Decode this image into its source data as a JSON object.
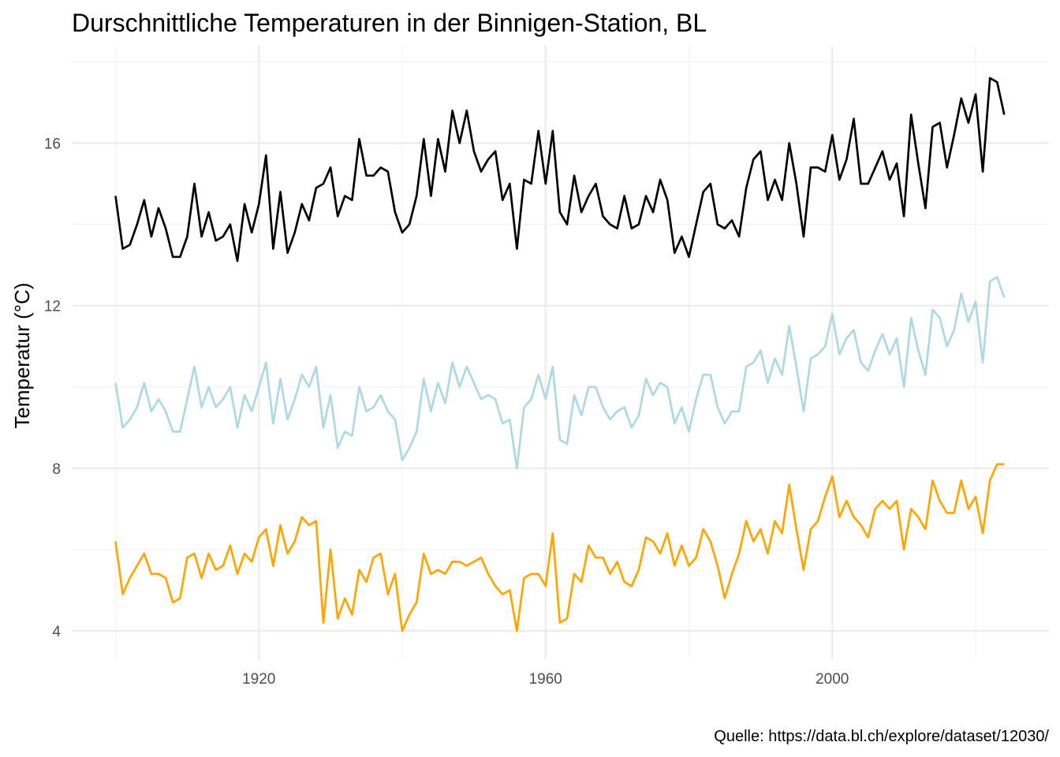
{
  "chart_data": {
    "type": "line",
    "title": "Durschnittliche Temperaturen in der Binnigen-Station, BL",
    "xlabel": "",
    "ylabel": "Temperatur (°C)",
    "caption": "Quelle: https://data.bl.ch/explore/dataset/12030/",
    "xlim": [
      1890,
      2028
    ],
    "ylim": [
      3.4,
      18.2
    ],
    "x_ticks": [
      1920,
      1960,
      2000
    ],
    "x_minor_ticks": [
      1900,
      1940,
      1980,
      2020
    ],
    "y_ticks": [
      4,
      8,
      12,
      16
    ],
    "y_minor_ticks": [
      6,
      10,
      14,
      18
    ],
    "grid": true,
    "legend": "none",
    "x_start": 1900,
    "x": [
      1900,
      1901,
      1902,
      1903,
      1904,
      1905,
      1906,
      1907,
      1908,
      1909,
      1910,
      1911,
      1912,
      1913,
      1914,
      1915,
      1916,
      1917,
      1918,
      1919,
      1920,
      1921,
      1922,
      1923,
      1924,
      1925,
      1926,
      1927,
      1928,
      1929,
      1930,
      1931,
      1932,
      1933,
      1934,
      1935,
      1936,
      1937,
      1938,
      1939,
      1940,
      1941,
      1942,
      1943,
      1944,
      1945,
      1946,
      1947,
      1948,
      1949,
      1950,
      1951,
      1952,
      1953,
      1954,
      1955,
      1956,
      1957,
      1958,
      1959,
      1960,
      1961,
      1962,
      1963,
      1964,
      1965,
      1966,
      1967,
      1968,
      1969,
      1970,
      1971,
      1972,
      1973,
      1974,
      1975,
      1976,
      1977,
      1978,
      1979,
      1980,
      1981,
      1982,
      1983,
      1984,
      1985,
      1986,
      1987,
      1988,
      1989,
      1990,
      1991,
      1992,
      1993,
      1994,
      1995,
      1996,
      1997,
      1998,
      1999,
      2000,
      2001,
      2002,
      2003,
      2004,
      2005,
      2006,
      2007,
      2008,
      2009,
      2010,
      2011,
      2012,
      2013,
      2014,
      2015,
      2016,
      2017,
      2018,
      2019,
      2020,
      2021,
      2022,
      2023,
      2024
    ],
    "series": [
      {
        "color": "#000000",
        "values": [
          14.7,
          13.4,
          13.5,
          14.0,
          14.6,
          13.7,
          14.4,
          13.9,
          13.2,
          13.2,
          13.7,
          15.0,
          13.7,
          14.3,
          13.6,
          13.7,
          14.0,
          13.1,
          14.5,
          13.8,
          14.5,
          15.7,
          13.4,
          14.8,
          13.3,
          13.8,
          14.5,
          14.1,
          14.9,
          15.0,
          15.4,
          14.2,
          14.7,
          14.6,
          16.1,
          15.2,
          15.2,
          15.4,
          15.3,
          14.3,
          13.8,
          14.0,
          14.7,
          16.1,
          14.7,
          16.1,
          15.3,
          16.8,
          16.0,
          16.8,
          15.8,
          15.3,
          15.6,
          15.8,
          14.6,
          15.0,
          13.4,
          15.1,
          15.0,
          16.3,
          15.0,
          16.3,
          14.3,
          14.0,
          15.2,
          14.3,
          14.7,
          15.0,
          14.2,
          14.0,
          13.9,
          14.7,
          13.9,
          14.0,
          14.7,
          14.3,
          15.1,
          14.6,
          13.3,
          13.7,
          13.2,
          14.0,
          14.8,
          15.0,
          14.0,
          13.9,
          14.1,
          13.7,
          14.9,
          15.6,
          15.8,
          14.6,
          15.1,
          14.6,
          16.0,
          15.0,
          13.7,
          15.4,
          15.4,
          15.3,
          16.2,
          15.1,
          15.6,
          16.6,
          15.0,
          15.0,
          15.4,
          15.8,
          15.1,
          15.5,
          14.2,
          16.7,
          15.5,
          14.4,
          16.4,
          16.5,
          15.4,
          16.2,
          17.1,
          16.5,
          17.2,
          15.3,
          17.6,
          17.5,
          16.7
        ]
      },
      {
        "color": "#add8e6",
        "values": [
          10.1,
          9.0,
          9.2,
          9.5,
          10.1,
          9.4,
          9.7,
          9.4,
          8.9,
          8.9,
          9.7,
          10.5,
          9.5,
          10.0,
          9.5,
          9.7,
          10.0,
          9.0,
          9.8,
          9.4,
          10.0,
          10.6,
          9.1,
          10.2,
          9.2,
          9.7,
          10.3,
          10.0,
          10.5,
          9.0,
          9.8,
          8.5,
          8.9,
          8.8,
          10.0,
          9.4,
          9.5,
          9.8,
          9.4,
          9.2,
          8.2,
          8.5,
          8.9,
          10.2,
          9.4,
          10.1,
          9.6,
          10.6,
          10.0,
          10.5,
          10.1,
          9.7,
          9.8,
          9.7,
          9.1,
          9.2,
          8.0,
          9.5,
          9.7,
          10.3,
          9.7,
          10.5,
          8.7,
          8.6,
          9.8,
          9.3,
          10.0,
          10.0,
          9.5,
          9.2,
          9.4,
          9.5,
          9.0,
          9.3,
          10.2,
          9.8,
          10.1,
          10.0,
          9.1,
          9.5,
          8.9,
          9.7,
          10.3,
          10.3,
          9.5,
          9.1,
          9.4,
          9.4,
          10.5,
          10.6,
          10.9,
          10.1,
          10.7,
          10.3,
          11.5,
          10.5,
          9.4,
          10.7,
          10.8,
          11.0,
          11.8,
          10.8,
          11.2,
          11.4,
          10.6,
          10.4,
          10.9,
          11.3,
          10.8,
          11.2,
          10.0,
          11.7,
          10.9,
          10.3,
          11.9,
          11.7,
          11.0,
          11.4,
          12.3,
          11.6,
          12.1,
          10.6,
          12.6,
          12.7,
          12.2
        ]
      },
      {
        "color": "#ffa500",
        "values": [
          6.2,
          4.9,
          5.3,
          5.6,
          5.9,
          5.4,
          5.4,
          5.3,
          4.7,
          4.8,
          5.8,
          5.9,
          5.3,
          5.9,
          5.5,
          5.6,
          6.1,
          5.4,
          5.9,
          5.7,
          6.3,
          6.5,
          5.6,
          6.6,
          5.9,
          6.2,
          6.8,
          6.6,
          6.7,
          4.2,
          6.0,
          4.3,
          4.8,
          4.4,
          5.5,
          5.2,
          5.8,
          5.9,
          4.9,
          5.4,
          4.0,
          4.4,
          4.7,
          5.9,
          5.4,
          5.5,
          5.4,
          5.7,
          5.7,
          5.6,
          5.7,
          5.8,
          5.4,
          5.1,
          4.9,
          5.0,
          4.0,
          5.3,
          5.4,
          5.4,
          5.1,
          6.4,
          4.2,
          4.3,
          5.4,
          5.2,
          6.1,
          5.8,
          5.8,
          5.4,
          5.7,
          5.2,
          5.1,
          5.5,
          6.3,
          6.2,
          5.9,
          6.4,
          5.6,
          6.1,
          5.6,
          5.8,
          6.5,
          6.2,
          5.6,
          4.8,
          5.4,
          5.9,
          6.7,
          6.2,
          6.5,
          5.9,
          6.7,
          6.4,
          7.6,
          6.5,
          5.5,
          6.5,
          6.7,
          7.3,
          7.8,
          6.8,
          7.2,
          6.8,
          6.6,
          6.3,
          7.0,
          7.2,
          7.0,
          7.2,
          6.0,
          7.0,
          6.8,
          6.5,
          7.7,
          7.2,
          6.9,
          6.9,
          7.7,
          7.0,
          7.3,
          6.4,
          7.7,
          8.1,
          8.1
        ]
      }
    ]
  }
}
